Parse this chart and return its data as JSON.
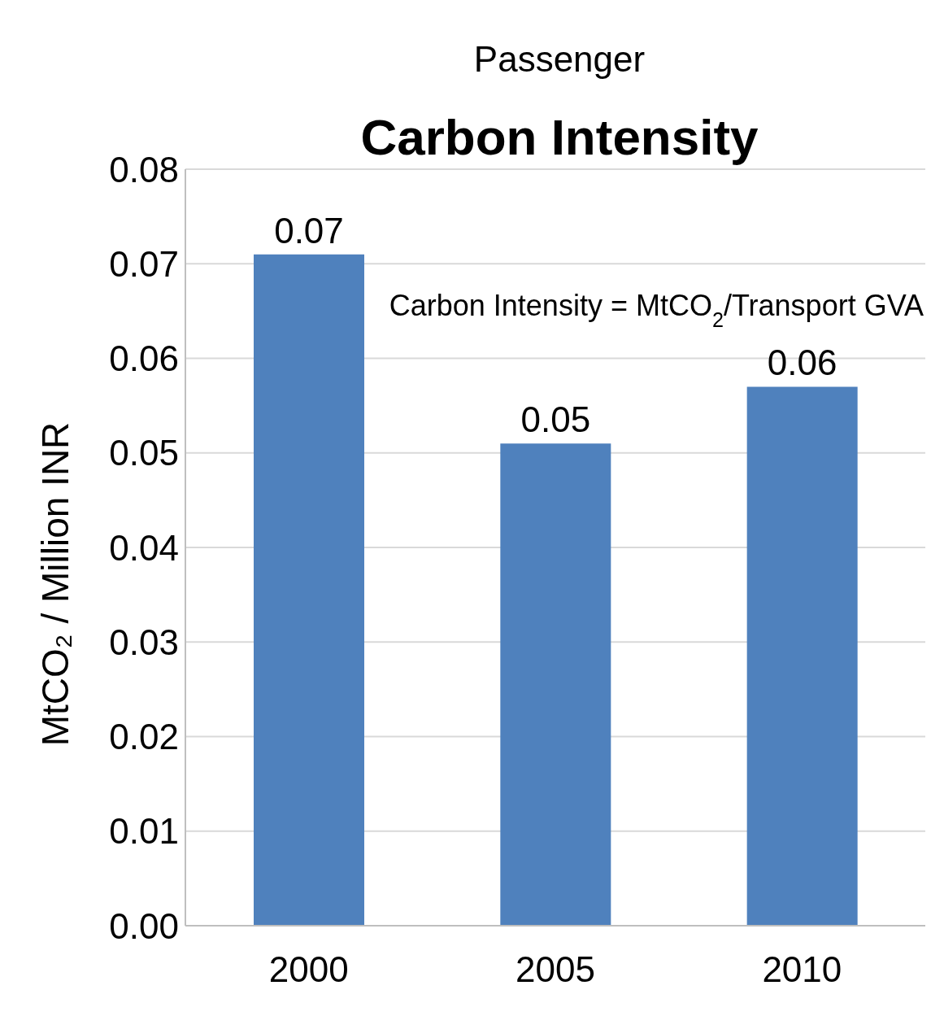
{
  "chart_data": {
    "type": "bar",
    "title": "Carbon Intensity",
    "subtitle": "Passenger",
    "ylabel": "MtCO₂ / Million INR",
    "categories": [
      "2000",
      "2005",
      "2010"
    ],
    "values": [
      0.071,
      0.051,
      0.057
    ],
    "value_labels": [
      "0.07",
      "0.05",
      "0.06"
    ],
    "color": "#4f81bd",
    "ylim": [
      0,
      0.08
    ],
    "yticks": [
      {
        "value": 0,
        "label": "0.00"
      },
      {
        "value": 0.01,
        "label": "0.01"
      },
      {
        "value": 0.02,
        "label": "0.02"
      },
      {
        "value": 0.03,
        "label": "0.03"
      },
      {
        "value": 0.04,
        "label": "0.04"
      },
      {
        "value": 0.05,
        "label": "0.05"
      },
      {
        "value": 0.06,
        "label": "0.06"
      },
      {
        "value": 0.07,
        "label": "0.07"
      },
      {
        "value": 0.08,
        "label": "0.08"
      }
    ],
    "grid": "y",
    "annotations": [
      "Carbon Intensity = MtCO$_{2}$/Transport GVA"
    ]
  }
}
